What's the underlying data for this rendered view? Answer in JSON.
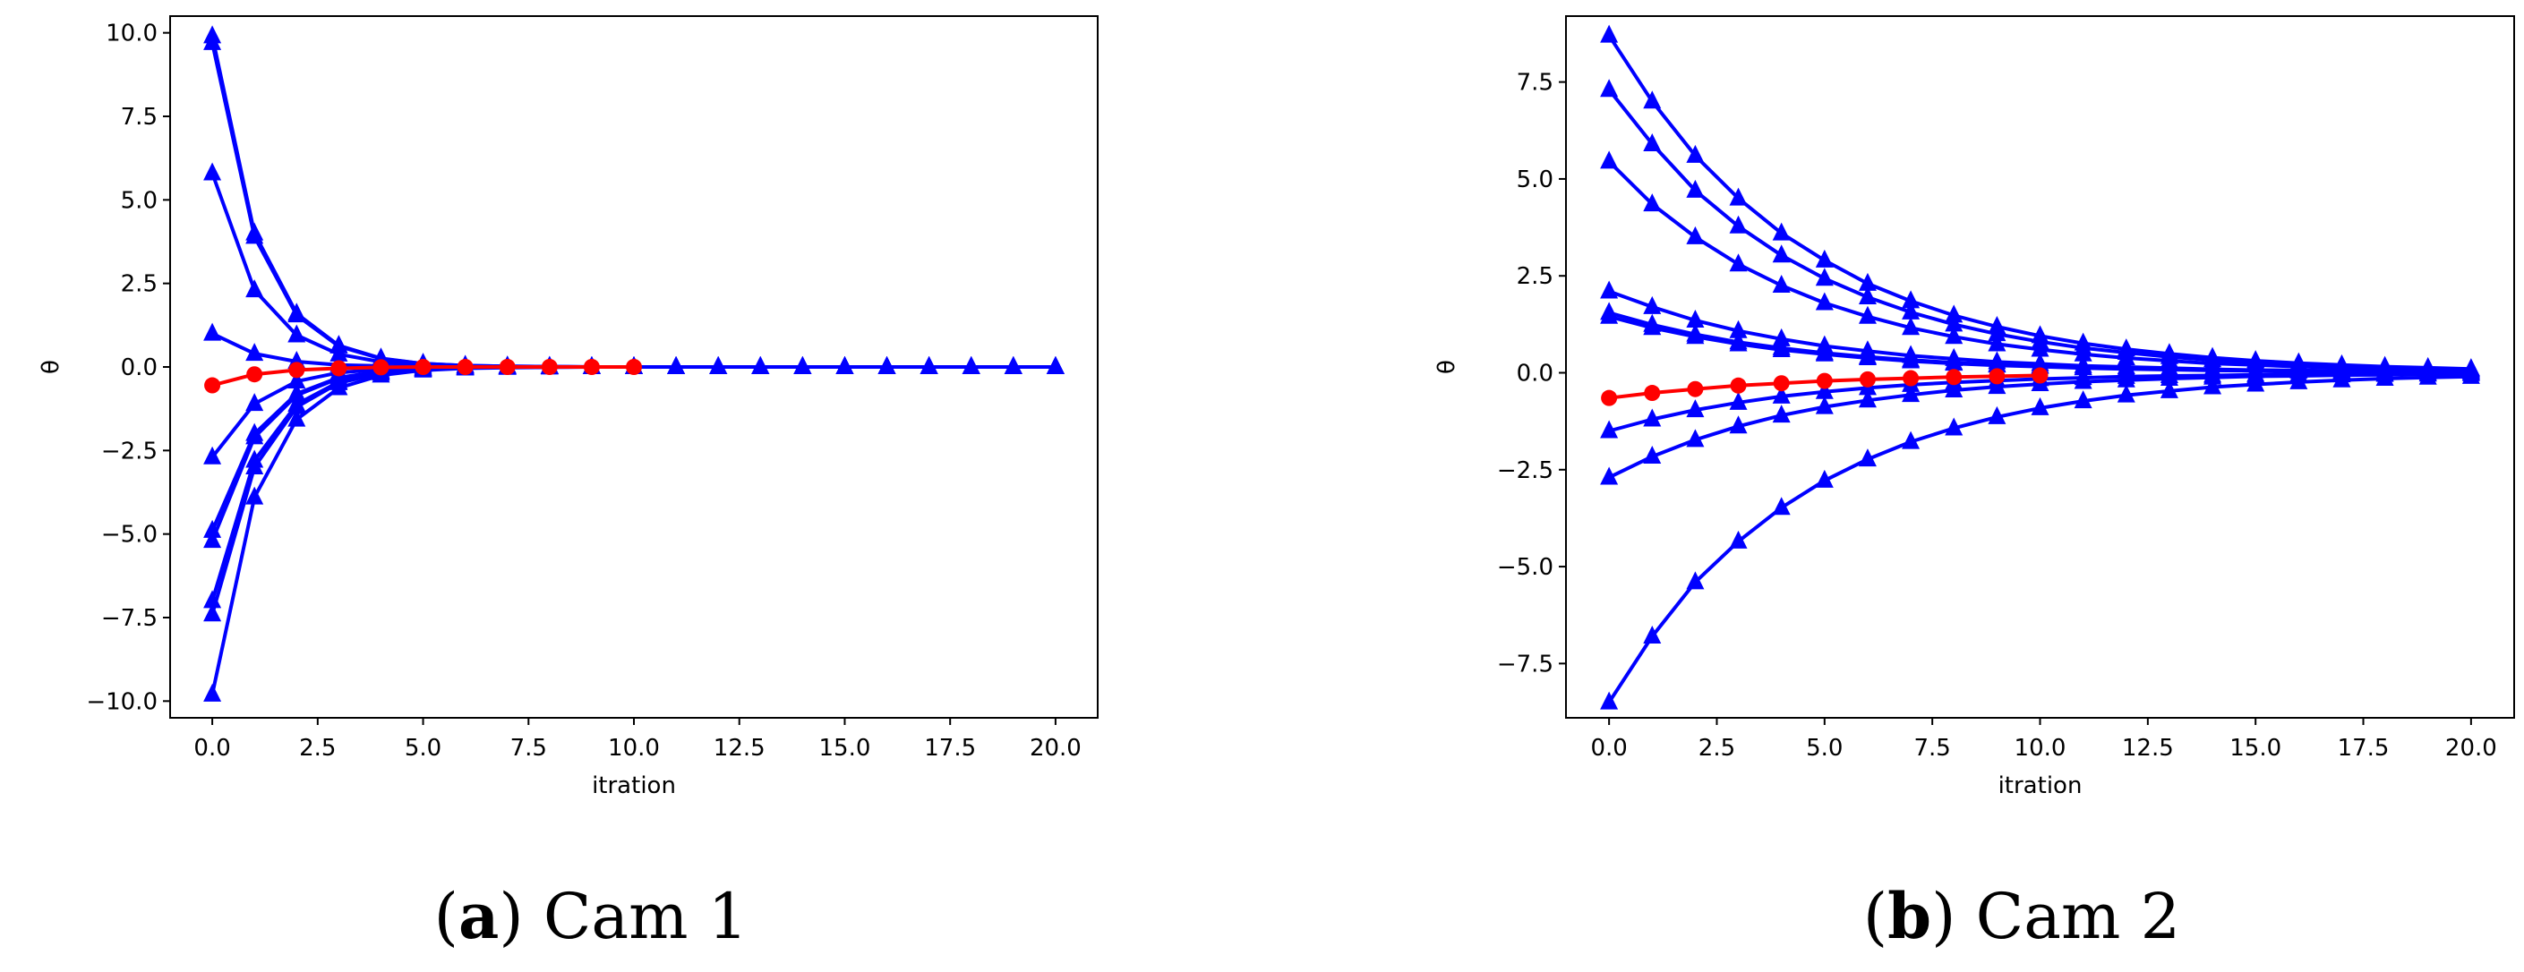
{
  "chart_data": [
    {
      "type": "line",
      "xlabel": "itration",
      "ylabel": "θ",
      "xlim": [
        -1,
        21
      ],
      "ylim": [
        -10.5,
        10.5
      ],
      "xticks": [
        "0.0",
        "2.5",
        "5.0",
        "7.5",
        "10.0",
        "12.5",
        "15.0",
        "17.5",
        "20.0"
      ],
      "xtick_values": [
        0,
        2.5,
        5,
        7.5,
        10,
        12.5,
        15,
        17.5,
        20
      ],
      "yticks": [
        "10.0",
        "7.5",
        "5.0",
        "2.5",
        "0.0",
        "−2.5",
        "−5.0",
        "−7.5",
        "−10.0"
      ],
      "ytick_values": [
        10,
        7.5,
        5,
        2.5,
        0,
        -2.5,
        -5,
        -7.5,
        -10
      ],
      "grid": false,
      "caption_letter": "a",
      "caption_text": "Cam 1",
      "series": [
        {
          "color": "#0000ff",
          "marker": "triangle",
          "x": [
            0,
            1,
            2,
            3,
            4,
            5,
            6,
            7,
            8,
            9,
            10,
            11,
            12,
            13,
            14,
            15,
            16,
            17,
            18,
            19,
            20
          ],
          "y": [
            9.9,
            4.0,
            1.6,
            0.64,
            0.26,
            0.1,
            0.04,
            0.02,
            0.01,
            0,
            0,
            0,
            0,
            0,
            0,
            0,
            0,
            0,
            0,
            0,
            0
          ]
        },
        {
          "color": "#0000ff",
          "marker": "triangle",
          "x": [
            0,
            1,
            2,
            3,
            4,
            5,
            6,
            7,
            8,
            9,
            10,
            11,
            12,
            13,
            14,
            15,
            16,
            17,
            18,
            19,
            20
          ],
          "y": [
            9.7,
            3.9,
            1.55,
            0.62,
            0.25,
            0.1,
            0.04,
            0.02,
            0.01,
            0,
            0,
            0,
            0,
            0,
            0,
            0,
            0,
            0,
            0,
            0,
            0
          ]
        },
        {
          "color": "#0000ff",
          "marker": "triangle",
          "x": [
            0,
            1,
            2,
            3,
            4,
            5,
            6,
            7,
            8,
            9,
            10,
            11,
            12,
            13,
            14,
            15,
            16,
            17,
            18,
            19,
            20
          ],
          "y": [
            5.8,
            2.3,
            0.95,
            0.38,
            0.15,
            0.06,
            0.02,
            0.01,
            0,
            0,
            0,
            0,
            0,
            0,
            0,
            0,
            0,
            0,
            0,
            0,
            0
          ]
        },
        {
          "color": "#0000ff",
          "marker": "triangle",
          "x": [
            0,
            1,
            2,
            3,
            4,
            5,
            6,
            7,
            8,
            9,
            10,
            11,
            12,
            13,
            14,
            15,
            16,
            17,
            18,
            19,
            20
          ],
          "y": [
            1.0,
            0.4,
            0.16,
            0.06,
            0.03,
            0.01,
            0,
            0,
            0,
            0,
            0,
            0,
            0,
            0,
            0,
            0,
            0,
            0,
            0,
            0,
            0
          ]
        },
        {
          "color": "#0000ff",
          "marker": "triangle",
          "x": [
            0,
            1,
            2,
            3,
            4,
            5,
            6,
            7,
            8,
            9,
            10,
            11,
            12,
            13,
            14,
            15,
            16,
            17,
            18,
            19,
            20
          ],
          "y": [
            -2.7,
            -1.1,
            -0.43,
            -0.17,
            -0.07,
            -0.03,
            -0.01,
            0,
            0,
            0,
            0,
            0,
            0,
            0,
            0,
            0,
            0,
            0,
            0,
            0,
            0
          ]
        },
        {
          "color": "#0000ff",
          "marker": "triangle",
          "x": [
            0,
            1,
            2,
            3,
            4,
            5,
            6,
            7,
            8,
            9,
            10,
            11,
            12,
            13,
            14,
            15,
            16,
            17,
            18,
            19,
            20
          ],
          "y": [
            -4.9,
            -2.0,
            -0.8,
            -0.32,
            -0.13,
            -0.05,
            -0.02,
            -0.01,
            0,
            0,
            0,
            0,
            0,
            0,
            0,
            0,
            0,
            0,
            0,
            0,
            0
          ]
        },
        {
          "color": "#0000ff",
          "marker": "triangle",
          "x": [
            0,
            1,
            2,
            3,
            4,
            5,
            6,
            7,
            8,
            9,
            10,
            11,
            12,
            13,
            14,
            15,
            16,
            17,
            18,
            19,
            20
          ],
          "y": [
            -5.2,
            -2.1,
            -0.85,
            -0.34,
            -0.14,
            -0.05,
            -0.02,
            -0.01,
            0,
            0,
            0,
            0,
            0,
            0,
            0,
            0,
            0,
            0,
            0,
            0,
            0
          ]
        },
        {
          "color": "#0000ff",
          "marker": "triangle",
          "x": [
            0,
            1,
            2,
            3,
            4,
            5,
            6,
            7,
            8,
            9,
            10,
            11,
            12,
            13,
            14,
            15,
            16,
            17,
            18,
            19,
            20
          ],
          "y": [
            -7.0,
            -2.8,
            -1.12,
            -0.45,
            -0.18,
            -0.07,
            -0.03,
            -0.01,
            0,
            0,
            0,
            0,
            0,
            0,
            0,
            0,
            0,
            0,
            0,
            0,
            0
          ]
        },
        {
          "color": "#0000ff",
          "marker": "triangle",
          "x": [
            0,
            1,
            2,
            3,
            4,
            5,
            6,
            7,
            8,
            9,
            10,
            11,
            12,
            13,
            14,
            15,
            16,
            17,
            18,
            19,
            20
          ],
          "y": [
            -7.4,
            -3.0,
            -1.2,
            -0.48,
            -0.19,
            -0.08,
            -0.03,
            -0.01,
            0,
            0,
            0,
            0,
            0,
            0,
            0,
            0,
            0,
            0,
            0,
            0,
            0
          ]
        },
        {
          "color": "#0000ff",
          "marker": "triangle",
          "x": [
            0,
            1,
            2,
            3,
            4,
            5,
            6,
            7,
            8,
            9,
            10,
            11,
            12,
            13,
            14,
            15,
            16,
            17,
            18,
            19,
            20
          ],
          "y": [
            -9.8,
            -3.9,
            -1.57,
            -0.63,
            -0.25,
            -0.1,
            -0.04,
            -0.02,
            -0.01,
            0,
            0,
            0,
            0,
            0,
            0,
            0,
            0,
            0,
            0,
            0,
            0
          ]
        },
        {
          "color": "#ff0000",
          "marker": "circle",
          "x": [
            0,
            1,
            2,
            3,
            4,
            5,
            6,
            7,
            8,
            9,
            10
          ],
          "y": [
            -0.55,
            -0.22,
            -0.09,
            -0.04,
            -0.01,
            0,
            0,
            0,
            0,
            0,
            0
          ]
        }
      ]
    },
    {
      "type": "line",
      "xlabel": "itration",
      "ylabel": "θ",
      "xlim": [
        -1,
        21
      ],
      "ylim": [
        -8.9,
        9.2
      ],
      "xticks": [
        "0.0",
        "2.5",
        "5.0",
        "7.5",
        "10.0",
        "12.5",
        "15.0",
        "17.5",
        "20.0"
      ],
      "xtick_values": [
        0,
        2.5,
        5,
        7.5,
        10,
        12.5,
        15,
        17.5,
        20
      ],
      "yticks": [
        "7.5",
        "5.0",
        "2.5",
        "0.0",
        "−2.5",
        "−5.0",
        "−7.5"
      ],
      "ytick_values": [
        7.5,
        5,
        2.5,
        0,
        -2.5,
        -5,
        -7.5
      ],
      "grid": false,
      "caption_letter": "b",
      "caption_text": "Cam 2",
      "series": [
        {
          "color": "#0000ff",
          "marker": "triangle",
          "x": [
            0,
            1,
            2,
            3,
            4,
            5,
            6,
            7,
            8,
            9,
            10,
            11,
            12,
            13,
            14,
            15,
            16,
            17,
            18,
            19,
            20
          ],
          "y": [
            8.7,
            7.0,
            5.6,
            4.5,
            3.6,
            2.9,
            2.3,
            1.85,
            1.48,
            1.19,
            0.95,
            0.76,
            0.61,
            0.49,
            0.39,
            0.31,
            0.25,
            0.2,
            0.16,
            0.13,
            0.1
          ]
        },
        {
          "color": "#0000ff",
          "marker": "triangle",
          "x": [
            0,
            1,
            2,
            3,
            4,
            5,
            6,
            7,
            8,
            9,
            10,
            11,
            12,
            13,
            14,
            15,
            16,
            17,
            18,
            19,
            20
          ],
          "y": [
            7.3,
            5.9,
            4.7,
            3.78,
            3.03,
            2.43,
            1.95,
            1.56,
            1.25,
            1.0,
            0.8,
            0.64,
            0.52,
            0.41,
            0.33,
            0.27,
            0.21,
            0.17,
            0.14,
            0.11,
            0.09
          ]
        },
        {
          "color": "#0000ff",
          "marker": "triangle",
          "x": [
            0,
            1,
            2,
            3,
            4,
            5,
            6,
            7,
            8,
            9,
            10,
            11,
            12,
            13,
            14,
            15,
            16,
            17,
            18,
            19,
            20
          ],
          "y": [
            5.45,
            4.35,
            3.5,
            2.8,
            2.25,
            1.8,
            1.45,
            1.16,
            0.93,
            0.74,
            0.6,
            0.48,
            0.38,
            0.31,
            0.24,
            0.2,
            0.16,
            0.13,
            0.1,
            0.08,
            0.06
          ]
        },
        {
          "color": "#0000ff",
          "marker": "triangle",
          "x": [
            0,
            1,
            2,
            3,
            4,
            5,
            6,
            7,
            8,
            9,
            10,
            11,
            12,
            13,
            14,
            15,
            16,
            17,
            18,
            19,
            20
          ],
          "y": [
            2.1,
            1.7,
            1.35,
            1.08,
            0.87,
            0.69,
            0.56,
            0.44,
            0.36,
            0.28,
            0.23,
            0.18,
            0.15,
            0.12,
            0.09,
            0.07,
            0.06,
            0.05,
            0.04,
            0.03,
            0.02
          ]
        },
        {
          "color": "#0000ff",
          "marker": "triangle",
          "x": [
            0,
            1,
            2,
            3,
            4,
            5,
            6,
            7,
            8,
            9,
            10,
            11,
            12,
            13,
            14,
            15,
            16,
            17,
            18,
            19,
            20
          ],
          "y": [
            1.55,
            1.24,
            0.99,
            0.79,
            0.64,
            0.51,
            0.41,
            0.33,
            0.26,
            0.21,
            0.17,
            0.13,
            0.11,
            0.09,
            0.07,
            0.05,
            0.04,
            0.03,
            0.03,
            0.02,
            0.02
          ]
        },
        {
          "color": "#0000ff",
          "marker": "triangle",
          "x": [
            0,
            1,
            2,
            3,
            4,
            5,
            6,
            7,
            8,
            9,
            10,
            11,
            12,
            13,
            14,
            15,
            16,
            17,
            18,
            19,
            20
          ],
          "y": [
            1.45,
            1.16,
            0.93,
            0.74,
            0.59,
            0.48,
            0.38,
            0.3,
            0.24,
            0.19,
            0.16,
            0.12,
            0.1,
            0.08,
            0.06,
            0.05,
            0.04,
            0.03,
            0.03,
            0.02,
            0.02
          ]
        },
        {
          "color": "#0000ff",
          "marker": "triangle",
          "x": [
            0,
            1,
            2,
            3,
            4,
            5,
            6,
            7,
            8,
            9,
            10,
            11,
            12,
            13,
            14,
            15,
            16,
            17,
            18,
            19,
            20
          ],
          "y": [
            -1.5,
            -1.2,
            -0.96,
            -0.77,
            -0.61,
            -0.49,
            -0.39,
            -0.31,
            -0.25,
            -0.2,
            -0.16,
            -0.13,
            -0.1,
            -0.08,
            -0.07,
            -0.05,
            -0.04,
            -0.03,
            -0.03,
            -0.02,
            -0.02
          ]
        },
        {
          "color": "#0000ff",
          "marker": "triangle",
          "x": [
            0,
            1,
            2,
            3,
            4,
            5,
            6,
            7,
            8,
            9,
            10,
            11,
            12,
            13,
            14,
            15,
            16,
            17,
            18,
            19,
            20
          ],
          "y": [
            -2.7,
            -2.16,
            -1.73,
            -1.38,
            -1.1,
            -0.88,
            -0.71,
            -0.57,
            -0.45,
            -0.36,
            -0.29,
            -0.23,
            -0.19,
            -0.15,
            -0.12,
            -0.09,
            -0.08,
            -0.06,
            -0.05,
            -0.04,
            -0.03
          ]
        },
        {
          "color": "#0000ff",
          "marker": "triangle",
          "x": [
            0,
            1,
            2,
            3,
            4,
            5,
            6,
            7,
            8,
            9,
            10,
            11,
            12,
            13,
            14,
            15,
            16,
            17,
            18,
            19,
            20
          ],
          "y": [
            -8.5,
            -6.8,
            -5.4,
            -4.35,
            -3.48,
            -2.78,
            -2.23,
            -1.78,
            -1.43,
            -1.14,
            -0.91,
            -0.73,
            -0.58,
            -0.47,
            -0.37,
            -0.3,
            -0.24,
            -0.19,
            -0.15,
            -0.12,
            -0.1
          ]
        },
        {
          "color": "#ff0000",
          "marker": "circle",
          "x": [
            0,
            1,
            2,
            3,
            4,
            5,
            6,
            7,
            8,
            9,
            10
          ],
          "y": [
            -0.65,
            -0.52,
            -0.42,
            -0.33,
            -0.27,
            -0.21,
            -0.17,
            -0.14,
            -0.11,
            -0.09,
            -0.07
          ]
        }
      ]
    }
  ]
}
